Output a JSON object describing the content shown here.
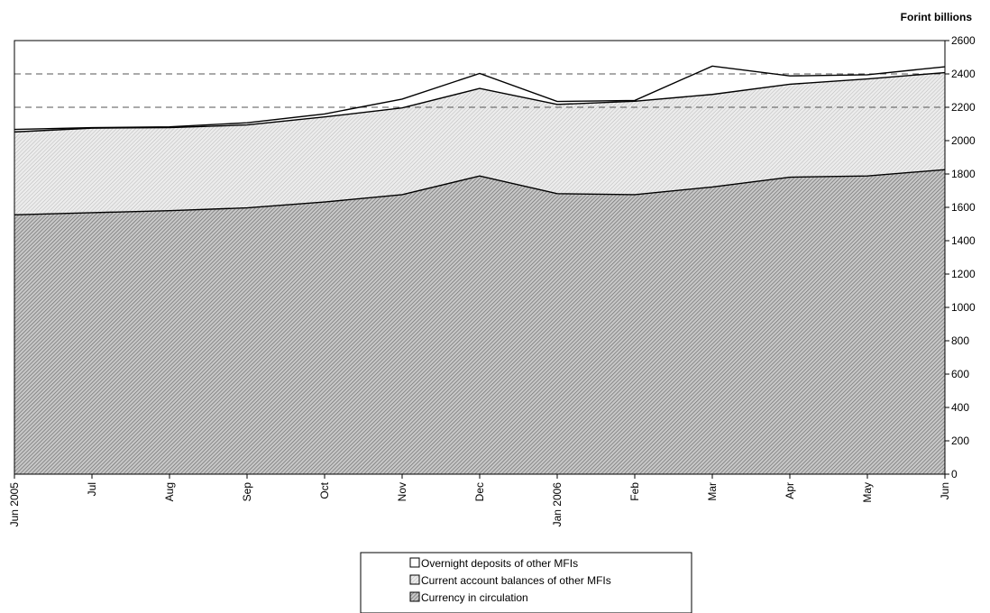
{
  "chart_data": {
    "type": "area",
    "stacked": true,
    "unit_label": "Forint billions",
    "categories": [
      "Jun 2005",
      "Jul",
      "Aug",
      "Sep",
      "Oct",
      "Nov",
      "Dec",
      "Jan 2006",
      "Feb",
      "Mar",
      "Apr",
      "May",
      "Jun"
    ],
    "series": [
      {
        "name": "Currency in circulation",
        "values": [
          1555,
          1568,
          1580,
          1597,
          1632,
          1676,
          1788,
          1682,
          1676,
          1722,
          1781,
          1788,
          1826
        ],
        "fill": "hatch-dense"
      },
      {
        "name": "Current account balances of other MFIs",
        "values": [
          497,
          507,
          498,
          497,
          510,
          520,
          525,
          535,
          560,
          555,
          557,
          582,
          582
        ],
        "fill": "hatch-light"
      },
      {
        "name": "Overnight deposits of other MFIs",
        "values": [
          15,
          3,
          5,
          13,
          18,
          53,
          90,
          18,
          5,
          170,
          50,
          25,
          35
        ],
        "fill": "white"
      }
    ],
    "ylim": [
      0,
      2600
    ],
    "ytick_step": 200,
    "yaxis_side": "right",
    "reference_lines": [
      2200,
      2400
    ],
    "grid": false,
    "legend_position": "bottom-center",
    "legend_order": [
      "Overnight deposits of other MFIs",
      "Current account balances of other MFIs",
      "Currency in circulation"
    ]
  }
}
